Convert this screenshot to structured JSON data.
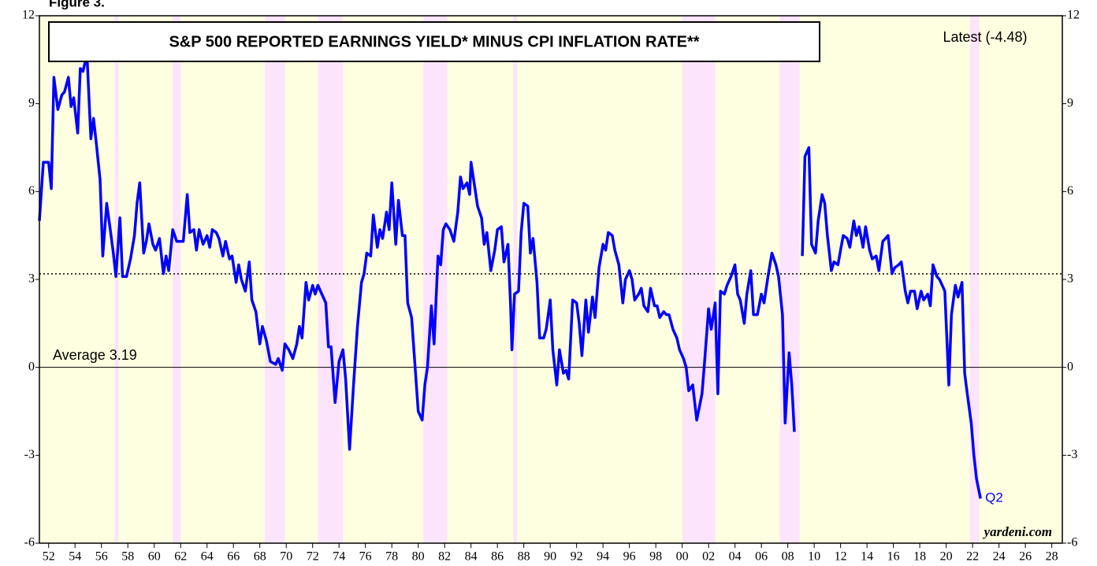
{
  "chart_data": {
    "type": "line",
    "figure_label": "Figure 3.",
    "title": "S&P 500 REPORTED EARNINGS YIELD* MINUS CPI INFLATION RATE**",
    "latest_label": "Latest (-4.48)",
    "average": 3.19,
    "average_label": "Average 3.19",
    "end_label": "Q2",
    "source": "yardeni.com",
    "xlim": [
      1951.3,
      2028.8
    ],
    "ylim": [
      -6,
      12
    ],
    "yticks": [
      -6,
      -3,
      0,
      3,
      6,
      9,
      12
    ],
    "xticks": [
      {
        "value": 1952,
        "label": "52"
      },
      {
        "value": 1954,
        "label": "54"
      },
      {
        "value": 1956,
        "label": "56"
      },
      {
        "value": 1958,
        "label": "58"
      },
      {
        "value": 1960,
        "label": "60"
      },
      {
        "value": 1962,
        "label": "62"
      },
      {
        "value": 1964,
        "label": "64"
      },
      {
        "value": 1966,
        "label": "66"
      },
      {
        "value": 1968,
        "label": "68"
      },
      {
        "value": 1970,
        "label": "70"
      },
      {
        "value": 1972,
        "label": "72"
      },
      {
        "value": 1974,
        "label": "74"
      },
      {
        "value": 1976,
        "label": "76"
      },
      {
        "value": 1978,
        "label": "78"
      },
      {
        "value": 1980,
        "label": "80"
      },
      {
        "value": 1982,
        "label": "82"
      },
      {
        "value": 1984,
        "label": "84"
      },
      {
        "value": 1986,
        "label": "86"
      },
      {
        "value": 1988,
        "label": "88"
      },
      {
        "value": 1990,
        "label": "90"
      },
      {
        "value": 1992,
        "label": "92"
      },
      {
        "value": 1994,
        "label": "94"
      },
      {
        "value": 1996,
        "label": "96"
      },
      {
        "value": 1998,
        "label": "98"
      },
      {
        "value": 2000,
        "label": "00"
      },
      {
        "value": 2002,
        "label": "02"
      },
      {
        "value": 2004,
        "label": "04"
      },
      {
        "value": 2006,
        "label": "06"
      },
      {
        "value": 2008,
        "label": "08"
      },
      {
        "value": 2010,
        "label": "10"
      },
      {
        "value": 2012,
        "label": "12"
      },
      {
        "value": 2014,
        "label": "14"
      },
      {
        "value": 2016,
        "label": "16"
      },
      {
        "value": 2018,
        "label": "18"
      },
      {
        "value": 2020,
        "label": "20"
      },
      {
        "value": 2022,
        "label": "22"
      },
      {
        "value": 2024,
        "label": "24"
      },
      {
        "value": 2026,
        "label": "26"
      },
      {
        "value": 2028,
        "label": "28"
      }
    ],
    "shading": [
      [
        1957.0,
        1957.3
      ],
      [
        1961.4,
        1962.0
      ],
      [
        1968.4,
        1969.9
      ],
      [
        1972.4,
        1974.3
      ],
      [
        1980.4,
        1982.2
      ],
      [
        1987.2,
        1987.5
      ],
      [
        2000.0,
        2002.5
      ],
      [
        2007.4,
        2008.9
      ],
      [
        1019.9,
        1019.9
      ],
      [
        2021.8,
        2022.5
      ]
    ],
    "shading_color": "#fce4fc",
    "background_color": "#fefee0",
    "series": [
      {
        "color": "#0000ff",
        "x": [
          1951.3,
          1951.6,
          1952.0,
          1952.2,
          1952.4,
          1952.7,
          1953.0,
          1953.2,
          1953.5,
          1953.7,
          1953.9,
          1954.2,
          1954.4,
          1954.6,
          1954.9,
          1955.2,
          1955.4,
          1955.6,
          1955.9,
          1956.1,
          1956.4,
          1956.7,
          1956.9,
          1957.1,
          1957.4,
          1957.6,
          1957.9,
          1958.2,
          1958.5,
          1958.7,
          1958.9,
          1959.2,
          1959.4,
          1959.6,
          1959.9,
          1960.1,
          1960.4,
          1960.7,
          1960.9,
          1961.1,
          1961.4,
          1961.7,
          1962.2,
          1962.5,
          1962.7,
          1963.0,
          1963.2,
          1963.4,
          1963.7,
          1964.0,
          1964.2,
          1964.4,
          1964.7,
          1964.9,
          1965.2,
          1965.4,
          1965.7,
          1965.9,
          1966.2,
          1966.4,
          1966.6,
          1966.9,
          1967.2,
          1967.4,
          1967.7,
          1968.0,
          1968.2,
          1968.5,
          1968.8,
          1969.2,
          1969.4,
          1969.7,
          1969.9,
          1970.2,
          1970.5,
          1970.8,
          1971.0,
          1971.2,
          1971.5,
          1971.7,
          1972.0,
          1972.2,
          1972.4,
          1972.7,
          1973.0,
          1973.2,
          1973.4,
          1973.7,
          1974.0,
          1974.3,
          1974.5,
          1974.8,
          1975.1,
          1975.4,
          1975.7,
          1975.9,
          1976.1,
          1976.4,
          1976.6,
          1976.9,
          1977.1,
          1977.3,
          1977.6,
          1977.8,
          1978.0,
          1978.3,
          1978.5,
          1978.8,
          1979.0,
          1979.2,
          1979.5,
          1979.8,
          1980.0,
          1980.3,
          1980.5,
          1980.7,
          1981.0,
          1981.2,
          1981.5,
          1981.7,
          1981.9,
          1982.1,
          1982.4,
          1982.7,
          1983.0,
          1983.2,
          1983.4,
          1983.7,
          1983.9,
          1984.0,
          1984.3,
          1984.5,
          1984.8,
          1985.0,
          1985.2,
          1985.5,
          1985.8,
          1986.0,
          1986.3,
          1986.5,
          1986.8,
          1987.0,
          1987.1,
          1987.3,
          1987.6,
          1987.8,
          1988.0,
          1988.3,
          1988.5,
          1988.7,
          1989.0,
          1989.2,
          1989.5,
          1989.7,
          1990.0,
          1990.2,
          1990.5,
          1990.7,
          1991.0,
          1991.2,
          1991.4,
          1991.7,
          1992.0,
          1992.2,
          1992.4,
          1992.7,
          1992.9,
          1993.2,
          1993.4,
          1993.7,
          1994.0,
          1994.2,
          1994.4,
          1994.7,
          1994.9,
          1995.2,
          1995.5,
          1995.7,
          1996.0,
          1996.2,
          1996.4,
          1996.7,
          1996.9,
          1997.1,
          1997.4,
          1997.6,
          1997.9,
          1998.1,
          1998.3,
          1998.6,
          1998.8,
          1999.0,
          1999.3,
          1999.6,
          1999.8,
          2000.1,
          2000.3,
          2000.5,
          2000.8,
          2001.1,
          2001.5,
          2001.7,
          2002.0,
          2002.2,
          2002.5,
          2002.7,
          2002.9,
          2003.2,
          2003.4,
          2003.7,
          2004.0,
          2004.2,
          2004.4,
          2004.7,
          2004.9,
          2005.2,
          2005.4,
          2005.7,
          2006.0,
          2006.2,
          2006.5,
          2006.8,
          2007.1,
          2007.3,
          2007.6,
          2007.8,
          2008.1,
          2008.3,
          2008.5,
          2008.8,
          2009.1,
          2009.3,
          2009.6,
          2009.8,
          2010.1,
          2010.3,
          2010.6,
          2010.8,
          2011.0,
          2011.3,
          2011.5,
          2011.8,
          2012.0,
          2012.2,
          2012.5,
          2012.7,
          2013.0,
          2013.2,
          2013.4,
          2013.7,
          2013.9,
          2014.2,
          2014.4,
          2014.7,
          2014.9,
          2015.2,
          2015.4,
          2015.6,
          2015.9,
          2016.1,
          2016.4,
          2016.6,
          2016.9,
          2017.1,
          2017.3,
          2017.6,
          2017.8,
          2018.1,
          2018.3,
          2018.6,
          2018.8,
          2019.0,
          2019.3,
          2019.5,
          2019.8,
          2019.9,
          2020.2,
          2020.4,
          2020.7,
          2020.9,
          2021.2,
          2021.4,
          2021.6,
          2021.9,
          2022.1,
          2022.3,
          2022.6
        ],
        "values": [
          5.0,
          7.0,
          7.0,
          6.1,
          9.9,
          8.8,
          9.3,
          9.4,
          9.9,
          8.9,
          9.2,
          8.0,
          10.2,
          10.1,
          10.7,
          7.8,
          8.5,
          7.7,
          6.4,
          3.8,
          5.6,
          4.6,
          3.9,
          3.1,
          5.1,
          3.1,
          3.1,
          3.7,
          4.5,
          5.6,
          6.3,
          3.9,
          4.3,
          4.9,
          4.2,
          4.0,
          4.4,
          3.2,
          3.8,
          3.3,
          4.7,
          4.3,
          4.3,
          5.9,
          4.6,
          4.7,
          4.0,
          4.7,
          4.2,
          4.5,
          4.1,
          4.7,
          4.6,
          4.4,
          3.8,
          4.3,
          3.7,
          3.8,
          2.9,
          3.5,
          3.0,
          2.6,
          3.6,
          2.3,
          1.9,
          0.8,
          1.4,
          0.9,
          0.2,
          0.1,
          0.3,
          -0.1,
          0.8,
          0.6,
          0.3,
          0.8,
          1.4,
          1.0,
          2.9,
          2.3,
          2.8,
          2.5,
          2.8,
          2.5,
          2.2,
          0.7,
          0.7,
          -1.2,
          0.2,
          0.6,
          -0.4,
          -2.8,
          -0.6,
          1.4,
          2.9,
          3.2,
          3.9,
          3.8,
          5.2,
          4.1,
          4.7,
          4.4,
          5.3,
          4.7,
          6.3,
          4.2,
          5.7,
          4.5,
          4.5,
          2.2,
          1.7,
          -0.2,
          -1.5,
          -1.8,
          -0.6,
          0.0,
          2.1,
          0.8,
          3.8,
          3.5,
          4.7,
          4.9,
          4.7,
          4.3,
          5.3,
          6.5,
          6.1,
          6.3,
          5.9,
          7.0,
          6.1,
          5.5,
          5.1,
          4.2,
          4.6,
          3.3,
          4.0,
          4.7,
          4.8,
          3.6,
          4.2,
          2.1,
          0.6,
          2.5,
          2.6,
          4.6,
          5.6,
          5.5,
          3.9,
          4.4,
          2.9,
          1.0,
          1.0,
          1.3,
          2.3,
          0.6,
          -0.6,
          0.6,
          -0.2,
          -0.1,
          -0.4,
          2.3,
          2.2,
          1.5,
          0.4,
          2.3,
          1.2,
          2.4,
          1.7,
          3.4,
          4.2,
          4.0,
          4.6,
          4.5,
          4.0,
          3.5,
          2.2,
          3.0,
          3.3,
          3.0,
          2.3,
          2.5,
          2.7,
          2.1,
          1.9,
          2.7,
          2.1,
          2.1,
          1.7,
          1.9,
          1.8,
          1.8,
          1.3,
          1.0,
          0.6,
          0.3,
          0.0,
          -0.8,
          -0.6,
          -1.8,
          -0.9,
          0.2,
          2.0,
          1.3,
          2.2,
          -0.9,
          2.6,
          2.5,
          2.8,
          3.1,
          3.5,
          2.5,
          2.3,
          1.5,
          2.5,
          3.3,
          1.8,
          1.8,
          2.5,
          2.2,
          3.1,
          3.9,
          3.5,
          3.1,
          1.8,
          -1.9,
          0.5,
          -0.6,
          -2.2,
          null,
          3.8,
          7.2,
          7.5,
          4.2,
          3.9,
          5.0,
          5.9,
          5.6,
          4.5,
          3.3,
          3.6,
          3.5,
          4.0,
          4.5,
          4.4,
          4.1,
          5.0,
          4.5,
          4.8,
          4.1,
          4.8,
          4.0,
          3.7,
          3.8,
          3.3,
          4.3,
          4.4,
          4.5,
          3.2,
          3.4,
          3.5,
          3.6,
          2.6,
          2.2,
          2.6,
          2.6,
          2.0,
          2.6,
          2.3,
          2.5,
          2.1,
          3.5,
          3.1,
          3.0,
          2.7,
          2.6,
          -0.6,
          1.8,
          2.8,
          2.4,
          2.9,
          -0.2,
          -0.9,
          -1.9,
          -3.0,
          -3.8,
          -4.48
        ]
      }
    ]
  }
}
